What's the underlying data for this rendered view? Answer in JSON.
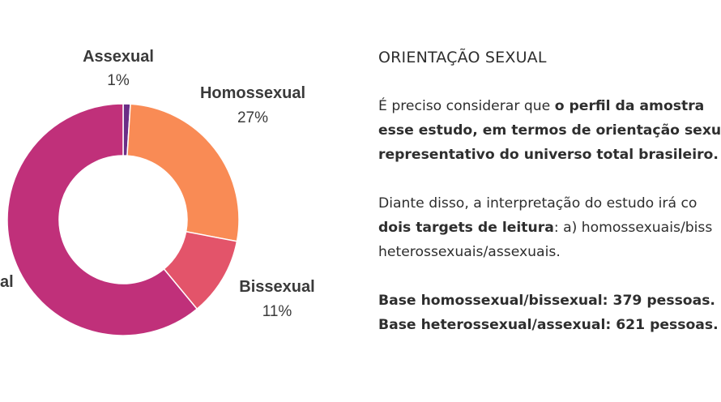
{
  "chart_data": {
    "type": "pie",
    "title": "",
    "variant": "donut",
    "slices": [
      {
        "label": "Assexual",
        "value": 1,
        "value_label": "1%",
        "color": "#6b2d86"
      },
      {
        "label": "Homossexual",
        "value": 27,
        "value_label": "27%",
        "color": "#f98b55"
      },
      {
        "label": "Bissexual",
        "value": 11,
        "value_label": "11%",
        "color": "#e3546a"
      },
      {
        "label": "al",
        "value": 61,
        "value_label": "",
        "color": "#c0307a"
      }
    ]
  },
  "panel": {
    "title": "ORIENTAÇÃO SEXUAL",
    "p1": {
      "line1_plain": "É preciso considerar que ",
      "line1_bold": "o perfil da amostra",
      "line2_bold": "esse estudo, em termos de orientação sexua",
      "line3_bold": "representativo do universo total brasileiro."
    },
    "p2": {
      "line1_plain": "Diante disso, a interpretação do estudo irá co",
      "line2_bold": "dois targets de leitura",
      "line2_plain": ": a) homossexuais/biss",
      "line3_plain": "heterossexuais/assexuais."
    },
    "base_homo": "Base homossexual/bissexual: 379 pessoas.",
    "base_hetero": "Base heterossexual/assexual: 621 pessoas."
  }
}
